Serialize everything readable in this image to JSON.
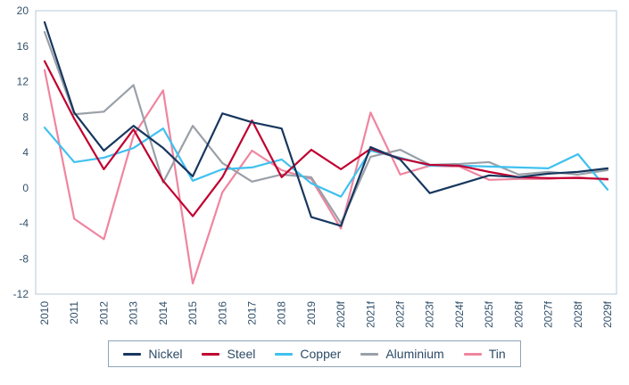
{
  "chart_data": {
    "type": "line",
    "title": "",
    "xlabel": "",
    "ylabel": "",
    "categories": [
      "2010",
      "2011",
      "2012",
      "2013",
      "2014",
      "2015",
      "2016",
      "2017",
      "2018",
      "2019",
      "2020f",
      "2021f",
      "2022f",
      "2023f",
      "2024f",
      "2025f",
      "2026f",
      "2027f",
      "2028f",
      "2029f"
    ],
    "ylim": [
      -12,
      20
    ],
    "ytick_step": 4,
    "yticks": [
      20,
      16,
      12,
      8,
      4,
      0,
      -4,
      -8,
      -12
    ],
    "grid": false,
    "legend_position": "bottom",
    "plot_border_color": "#b7c9d9",
    "axis_text_color": "#33516b",
    "series": [
      {
        "name": "Nickel",
        "color": "#17375e",
        "values": [
          18.7,
          8.5,
          4.2,
          7.0,
          4.5,
          1.3,
          8.4,
          7.4,
          6.7,
          -3.3,
          -4.3,
          4.6,
          3.2,
          -0.6,
          0.4,
          1.4,
          1.2,
          1.6,
          1.8,
          2.2
        ]
      },
      {
        "name": "Steel",
        "color": "#c00030",
        "values": [
          14.3,
          7.8,
          2.1,
          6.6,
          0.8,
          -3.2,
          1.2,
          7.6,
          1.2,
          4.3,
          2.1,
          4.4,
          3.3,
          2.6,
          2.5,
          1.8,
          1.2,
          1.1,
          1.1,
          1.0
        ]
      },
      {
        "name": "Copper",
        "color": "#3fc1f0",
        "values": [
          6.8,
          2.9,
          3.4,
          4.5,
          6.7,
          0.8,
          2.1,
          2.3,
          3.2,
          0.5,
          -1.0,
          4.2,
          3.4,
          2.5,
          2.5,
          2.4,
          2.3,
          2.2,
          3.8,
          -0.2
        ]
      },
      {
        "name": "Aluminium",
        "color": "#9aa0a8",
        "values": [
          17.6,
          8.3,
          8.6,
          11.6,
          0.6,
          7.0,
          2.8,
          0.7,
          1.5,
          1.2,
          -4.0,
          3.5,
          4.3,
          2.6,
          2.7,
          2.9,
          1.5,
          1.8,
          1.5,
          2.0
        ]
      },
      {
        "name": "Tin",
        "color": "#ef85a0",
        "values": [
          13.3,
          -3.5,
          -5.8,
          5.9,
          11.0,
          -10.8,
          -0.5,
          4.2,
          2.0,
          1.0,
          -4.6,
          8.5,
          1.5,
          2.5,
          2.4,
          0.9,
          1.0,
          1.0,
          1.2,
          0.9
        ]
      }
    ]
  }
}
